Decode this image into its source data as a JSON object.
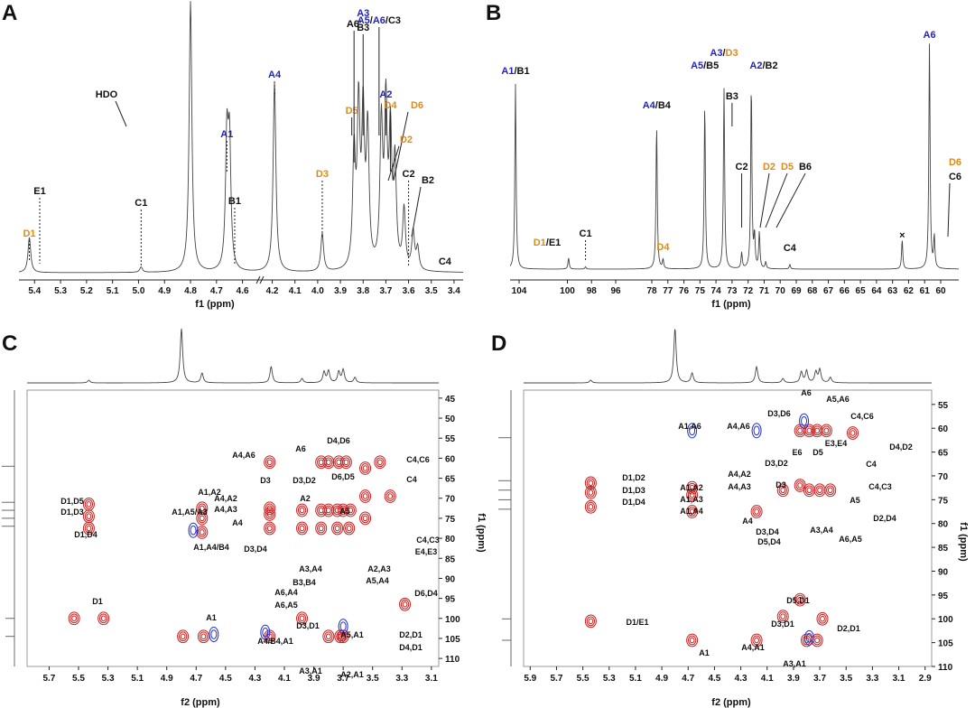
{
  "colors": {
    "A": "#2222cc",
    "D": "#e08a12",
    "other": "#111111",
    "pos": "#cc1f1f",
    "neg": "#2233cc",
    "line": "#444444"
  },
  "panels": {
    "A": {
      "label": "A",
      "xlabel": "f1 (ppm)"
    },
    "B": {
      "label": "B",
      "xlabel": "f1 (ppm)"
    },
    "C": {
      "label": "C",
      "xlabel": "f2 (ppm)",
      "ylabel": "f1 (ppm)"
    },
    "D": {
      "label": "D",
      "xlabel": "f2 (ppm)",
      "ylabel": "f1 (ppm)"
    }
  },
  "chart_data": [
    {
      "panel": "A",
      "type": "line",
      "xlabel": "f1 (ppm)",
      "xlim": [
        5.46,
        3.36
      ],
      "reversed": true,
      "xticks": [
        "5.4",
        "5.3",
        "5.2",
        "5.1",
        "5.0",
        "4.9",
        "4.8",
        "4.7",
        "4.6",
        "4.2",
        "4.1",
        "4.0",
        "3.9",
        "3.8",
        "3.7",
        "3.6",
        "3.5",
        "3.4"
      ],
      "axis_break_after": "4.6",
      "peaks": [
        {
          "x": 5.42,
          "h": 0.13
        },
        {
          "x": 4.99,
          "h": 0.02
        },
        {
          "x": 4.8,
          "h": 1.0
        },
        {
          "x": 4.66,
          "h": 0.47
        },
        {
          "x": 4.65,
          "h": 0.45
        },
        {
          "x": 4.19,
          "h": 0.7
        },
        {
          "x": 3.98,
          "h": 0.14
        },
        {
          "x": 3.84,
          "h": 0.42
        },
        {
          "x": 3.82,
          "h": 0.58
        },
        {
          "x": 3.8,
          "h": 0.55
        },
        {
          "x": 3.78,
          "h": 0.5
        },
        {
          "x": 3.72,
          "h": 0.52
        },
        {
          "x": 3.7,
          "h": 0.58
        },
        {
          "x": 3.68,
          "h": 0.48
        },
        {
          "x": 3.66,
          "h": 0.38
        },
        {
          "x": 3.62,
          "h": 0.22
        },
        {
          "x": 3.58,
          "h": 0.14
        },
        {
          "x": 3.56,
          "h": 0.08
        }
      ],
      "annotations": [
        {
          "parts": [
            [
              "D1",
              "D"
            ]
          ],
          "x": 5.42
        },
        {
          "parts": [
            [
              "E1",
              "other"
            ]
          ],
          "x": 5.38
        },
        {
          "parts": [
            [
              "C1",
              "other"
            ]
          ],
          "x": 4.99
        },
        {
          "parts": [
            [
              "HDO",
              "other"
            ]
          ],
          "x": 4.8
        },
        {
          "parts": [
            [
              "A1",
              "A"
            ]
          ],
          "x": 4.66
        },
        {
          "parts": [
            [
              "B1",
              "other"
            ]
          ],
          "x": 4.63
        },
        {
          "parts": [
            [
              "A4",
              "A"
            ]
          ],
          "x": 4.19
        },
        {
          "parts": [
            [
              "D3",
              "D"
            ]
          ],
          "x": 3.98
        },
        {
          "parts": [
            [
              "D5",
              "D"
            ]
          ],
          "x": 3.85
        },
        {
          "parts": [
            [
              "A6'",
              "other"
            ]
          ],
          "x": 3.84
        },
        {
          "parts": [
            [
              "A3",
              "A"
            ]
          ],
          "x": 3.8
        },
        {
          "parts": [
            [
              "B3",
              "other"
            ]
          ],
          "x": 3.8
        },
        {
          "parts": [
            [
              "A5",
              "A"
            ],
            [
              "/",
              "other"
            ],
            [
              "A6",
              "A"
            ],
            [
              "/C3",
              "other"
            ]
          ],
          "x": 3.73
        },
        {
          "parts": [
            [
              "A2",
              "A"
            ]
          ],
          "x": 3.7
        },
        {
          "parts": [
            [
              "D4",
              "D"
            ]
          ],
          "x": 3.68
        },
        {
          "parts": [
            [
              "D6",
              "D"
            ]
          ],
          "x": 3.66
        },
        {
          "parts": [
            [
              "D2",
              "D"
            ]
          ],
          "x": 3.64
        },
        {
          "parts": [
            [
              "C2",
              "other"
            ]
          ],
          "x": 3.6
        },
        {
          "parts": [
            [
              "B2",
              "other"
            ]
          ],
          "x": 3.56
        },
        {
          "parts": [
            [
              "C4",
              "other"
            ]
          ],
          "x": 3.44
        }
      ]
    },
    {
      "panel": "B",
      "type": "line",
      "xlabel": "f1 (ppm)",
      "xlim": [
        105.0,
        59.2
      ],
      "reversed": true,
      "xticks": [
        "104",
        "100",
        "98",
        "96",
        "78",
        "77",
        "76",
        "75",
        "74",
        "73",
        "72",
        "71",
        "70",
        "69",
        "68",
        "67",
        "66",
        "65",
        "64",
        "63",
        "62",
        "61",
        "60"
      ],
      "peaks": [
        {
          "x": 104.3,
          "h": 0.82
        },
        {
          "x": 99.9,
          "h": 0.05
        },
        {
          "x": 98.5,
          "h": 0.01
        },
        {
          "x": 77.7,
          "h": 0.64
        },
        {
          "x": 77.3,
          "h": 0.04
        },
        {
          "x": 74.7,
          "h": 0.73
        },
        {
          "x": 73.5,
          "h": 0.8
        },
        {
          "x": 72.4,
          "h": 0.07
        },
        {
          "x": 71.8,
          "h": 0.82
        },
        {
          "x": 71.6,
          "h": 0.14
        },
        {
          "x": 71.3,
          "h": 0.16
        },
        {
          "x": 70.9,
          "h": 0.03
        },
        {
          "x": 69.4,
          "h": 0.02
        },
        {
          "x": 62.4,
          "h": 0.13
        },
        {
          "x": 60.7,
          "h": 1.0
        },
        {
          "x": 60.4,
          "h": 0.14
        }
      ],
      "annotations": [
        {
          "parts": [
            [
              "A1",
              "A"
            ],
            [
              "/B1",
              "other"
            ]
          ],
          "x": 104.3
        },
        {
          "parts": [
            [
              "D1",
              "D"
            ],
            [
              "/E1",
              "other"
            ]
          ],
          "x": 99.9
        },
        {
          "parts": [
            [
              "C1",
              "other"
            ]
          ],
          "x": 98.5
        },
        {
          "parts": [
            [
              "A4",
              "A"
            ],
            [
              "/B4",
              "other"
            ]
          ],
          "x": 77.7
        },
        {
          "parts": [
            [
              "D4",
              "D"
            ]
          ],
          "x": 77.3
        },
        {
          "parts": [
            [
              "A5",
              "A"
            ],
            [
              "/B5",
              "other"
            ]
          ],
          "x": 74.7
        },
        {
          "parts": [
            [
              "A3",
              "A"
            ],
            [
              "/",
              "other"
            ],
            [
              "D3",
              "D"
            ]
          ],
          "x": 73.5
        },
        {
          "parts": [
            [
              "B3",
              "other"
            ]
          ],
          "x": 73.0
        },
        {
          "parts": [
            [
              "A2",
              "A"
            ],
            [
              "/B2",
              "other"
            ]
          ],
          "x": 71.8
        },
        {
          "parts": [
            [
              "C2",
              "other"
            ]
          ],
          "x": 72.4
        },
        {
          "parts": [
            [
              "D2",
              "D"
            ]
          ],
          "x": 71.6
        },
        {
          "parts": [
            [
              "D5",
              "D"
            ]
          ],
          "x": 71.3
        },
        {
          "parts": [
            [
              "B6",
              "other"
            ]
          ],
          "x": 70.9
        },
        {
          "parts": [
            [
              "C4",
              "other"
            ]
          ],
          "x": 69.4
        },
        {
          "parts": [
            [
              "×",
              "other"
            ]
          ],
          "x": 62.4
        },
        {
          "parts": [
            [
              "A6",
              "A"
            ]
          ],
          "x": 60.7
        },
        {
          "parts": [
            [
              "D6",
              "D"
            ]
          ],
          "x": 60.4
        },
        {
          "parts": [
            [
              "C6",
              "other"
            ]
          ],
          "x": 60.4
        }
      ]
    },
    {
      "panel": "C",
      "type": "contour",
      "xlabel": "f2 (ppm)",
      "ylabel": "f1 (ppm)",
      "xlim": [
        5.85,
        3.05
      ],
      "ylim": [
        43,
        112
      ],
      "xticks": [
        "5.7",
        "5.5",
        "5.3",
        "5.1",
        "4.9",
        "4.7",
        "4.5",
        "4.3",
        "4.1",
        "3.9",
        "3.7",
        "3.5",
        "3.3",
        "3.1"
      ],
      "yticks": [
        "45",
        "50",
        "55",
        "60",
        "65",
        "70",
        "75",
        "80",
        "85",
        "90",
        "95",
        "100",
        "105",
        "110"
      ],
      "cross_peaks": [
        {
          "x": 5.43,
          "y": 71.5
        },
        {
          "x": 5.43,
          "y": 74.5
        },
        {
          "x": 5.43,
          "y": 77.5
        },
        {
          "x": 5.53,
          "y": 100.0
        },
        {
          "x": 5.33,
          "y": 100.0
        },
        {
          "x": 4.79,
          "y": 104.5
        },
        {
          "x": 4.65,
          "y": 104.5
        },
        {
          "x": 4.66,
          "y": 72.5
        },
        {
          "x": 4.66,
          "y": 75.0
        },
        {
          "x": 4.66,
          "y": 78.5
        },
        {
          "x": 4.2,
          "y": 61.0
        },
        {
          "x": 4.2,
          "y": 72.5
        },
        {
          "x": 4.2,
          "y": 74.0
        },
        {
          "x": 4.2,
          "y": 77.5
        },
        {
          "x": 4.2,
          "y": 104.5
        },
        {
          "x": 3.85,
          "y": 61.0
        },
        {
          "x": 3.8,
          "y": 61.0
        },
        {
          "x": 3.73,
          "y": 61.0
        },
        {
          "x": 3.68,
          "y": 61.0
        },
        {
          "x": 3.55,
          "y": 62.5
        },
        {
          "x": 3.45,
          "y": 61.0
        },
        {
          "x": 3.98,
          "y": 73.0
        },
        {
          "x": 3.85,
          "y": 73.0
        },
        {
          "x": 3.8,
          "y": 73.0
        },
        {
          "x": 3.74,
          "y": 73.0
        },
        {
          "x": 3.7,
          "y": 73.0
        },
        {
          "x": 3.65,
          "y": 73.0
        },
        {
          "x": 3.55,
          "y": 69.5
        },
        {
          "x": 3.38,
          "y": 69.5
        },
        {
          "x": 3.98,
          "y": 77.5
        },
        {
          "x": 3.85,
          "y": 77.5
        },
        {
          "x": 3.74,
          "y": 77.5
        },
        {
          "x": 3.66,
          "y": 77.5
        },
        {
          "x": 3.8,
          "y": 104.5
        },
        {
          "x": 3.72,
          "y": 104.5
        },
        {
          "x": 3.7,
          "y": 104.5
        },
        {
          "x": 3.98,
          "y": 100.0
        },
        {
          "x": 3.28,
          "y": 96.5
        },
        {
          "x": 3.55,
          "y": 75.0
        }
      ],
      "negative_peaks": [
        {
          "x": 4.58,
          "y": 104.0
        },
        {
          "x": 4.23,
          "y": 103.5
        },
        {
          "x": 3.7,
          "y": 102.0
        },
        {
          "x": 4.72,
          "y": 78.0
        }
      ],
      "labels": [
        "A4,A6",
        "A6",
        "D4,D6",
        "C4,C6",
        "D3",
        "D3,D2",
        "D6,D5",
        "C4",
        "A2",
        "A4,A2",
        "A4,A3",
        "A5",
        "A1,A2",
        "A1,A5/A3",
        "A1,A4/B4",
        "A4",
        "D3,D4",
        "A3,A4",
        "A2,A3",
        "C4,C3",
        "E4,E3",
        "A6,A4",
        "B3,B4",
        "A5,A4",
        "A6,A5",
        "D6,D4",
        "D1,D5",
        "D1,D3",
        "D1,D4",
        "D1",
        "A1",
        "A4/B4,A1",
        "D3,D1",
        "A5,A1",
        "D2,D1",
        "D4,D1",
        "A3,A1",
        "A2,A1"
      ]
    },
    {
      "panel": "D",
      "type": "contour",
      "xlabel": "f2 (ppm)",
      "ylabel": "f1 (ppm)",
      "xlim": [
        5.95,
        2.85
      ],
      "ylim": [
        52,
        110
      ],
      "xticks": [
        "5.9",
        "5.7",
        "5.5",
        "5.3",
        "5.1",
        "4.9",
        "4.7",
        "4.5",
        "4.3",
        "4.1",
        "3.9",
        "3.7",
        "3.5",
        "3.3",
        "3.1",
        "2.9"
      ],
      "yticks": [
        "55",
        "60",
        "65",
        "70",
        "75",
        "80",
        "85",
        "90",
        "95",
        "100",
        "105",
        "110"
      ],
      "cross_peaks": [
        {
          "x": 5.44,
          "y": 71.5
        },
        {
          "x": 5.44,
          "y": 73.5
        },
        {
          "x": 5.44,
          "y": 76.5
        },
        {
          "x": 5.44,
          "y": 100.5
        },
        {
          "x": 4.67,
          "y": 72.5
        },
        {
          "x": 4.67,
          "y": 74.0
        },
        {
          "x": 4.67,
          "y": 77.5
        },
        {
          "x": 4.67,
          "y": 104.5
        },
        {
          "x": 4.18,
          "y": 77.5
        },
        {
          "x": 4.18,
          "y": 104.5
        },
        {
          "x": 3.98,
          "y": 73.0
        },
        {
          "x": 3.98,
          "y": 99.5
        },
        {
          "x": 3.85,
          "y": 60.5
        },
        {
          "x": 3.78,
          "y": 60.5
        },
        {
          "x": 3.72,
          "y": 60.5
        },
        {
          "x": 3.65,
          "y": 60.5
        },
        {
          "x": 3.45,
          "y": 61.0
        },
        {
          "x": 3.85,
          "y": 72.0
        },
        {
          "x": 3.78,
          "y": 73.0
        },
        {
          "x": 3.7,
          "y": 73.0
        },
        {
          "x": 3.62,
          "y": 73.0
        },
        {
          "x": 3.8,
          "y": 104.5
        },
        {
          "x": 3.72,
          "y": 104.5
        },
        {
          "x": 3.68,
          "y": 100.0
        },
        {
          "x": 3.85,
          "y": 96.0
        }
      ],
      "negative_peaks": [
        {
          "x": 4.67,
          "y": 60.5
        },
        {
          "x": 4.18,
          "y": 60.5
        },
        {
          "x": 3.82,
          "y": 58.5
        },
        {
          "x": 3.78,
          "y": 104.0
        }
      ],
      "labels": [
        "A6",
        "A5,A6",
        "D3,D6",
        "C4,C6",
        "A1,A6",
        "A4,A6",
        "D4,D2",
        "E3,E4",
        "E6",
        "D5",
        "D3,D2",
        "C4",
        "A4,A2",
        "A4,A3",
        "D3",
        "C4,C3",
        "A5",
        "A1,A2",
        "A1,A3",
        "A1,A4",
        "D2,D4",
        "A4",
        "A3,A4",
        "D3,D4",
        "A6,A5",
        "D5,D4",
        "D1,D2",
        "D1,D3",
        "D1,D4",
        "D5,D1",
        "D3,D1",
        "D2,D1",
        "D1/E1",
        "A1",
        "A4,A1",
        "A3,A1"
      ]
    }
  ]
}
